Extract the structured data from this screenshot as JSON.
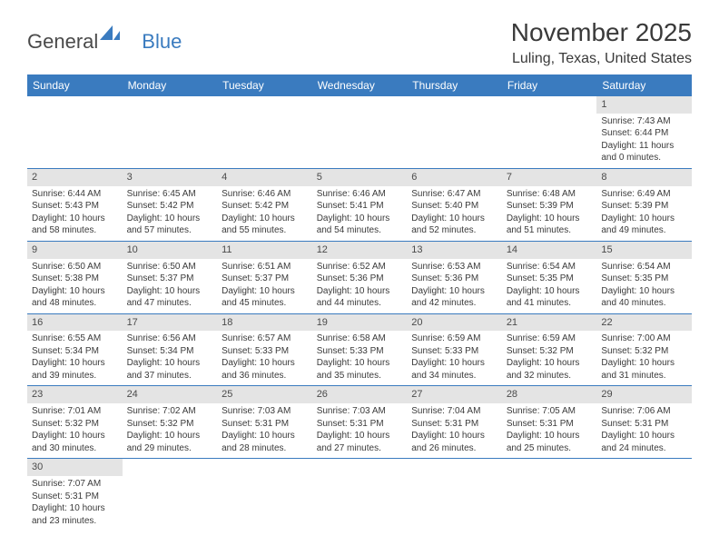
{
  "logo": {
    "text1": "General",
    "text2": "Blue"
  },
  "title": "November 2025",
  "location": "Luling, Texas, United States",
  "colors": {
    "header_bg": "#3a7bbf",
    "header_fg": "#ffffff",
    "daynum_bg": "#e4e4e4",
    "text": "#3a3a3a",
    "rule": "#3a7bbf"
  },
  "weekdays": [
    "Sunday",
    "Monday",
    "Tuesday",
    "Wednesday",
    "Thursday",
    "Friday",
    "Saturday"
  ],
  "weeks": [
    [
      null,
      null,
      null,
      null,
      null,
      null,
      {
        "n": "1",
        "sr": "Sunrise: 7:43 AM",
        "ss": "Sunset: 6:44 PM",
        "d1": "Daylight: 11 hours",
        "d2": "and 0 minutes."
      }
    ],
    [
      {
        "n": "2",
        "sr": "Sunrise: 6:44 AM",
        "ss": "Sunset: 5:43 PM",
        "d1": "Daylight: 10 hours",
        "d2": "and 58 minutes."
      },
      {
        "n": "3",
        "sr": "Sunrise: 6:45 AM",
        "ss": "Sunset: 5:42 PM",
        "d1": "Daylight: 10 hours",
        "d2": "and 57 minutes."
      },
      {
        "n": "4",
        "sr": "Sunrise: 6:46 AM",
        "ss": "Sunset: 5:42 PM",
        "d1": "Daylight: 10 hours",
        "d2": "and 55 minutes."
      },
      {
        "n": "5",
        "sr": "Sunrise: 6:46 AM",
        "ss": "Sunset: 5:41 PM",
        "d1": "Daylight: 10 hours",
        "d2": "and 54 minutes."
      },
      {
        "n": "6",
        "sr": "Sunrise: 6:47 AM",
        "ss": "Sunset: 5:40 PM",
        "d1": "Daylight: 10 hours",
        "d2": "and 52 minutes."
      },
      {
        "n": "7",
        "sr": "Sunrise: 6:48 AM",
        "ss": "Sunset: 5:39 PM",
        "d1": "Daylight: 10 hours",
        "d2": "and 51 minutes."
      },
      {
        "n": "8",
        "sr": "Sunrise: 6:49 AM",
        "ss": "Sunset: 5:39 PM",
        "d1": "Daylight: 10 hours",
        "d2": "and 49 minutes."
      }
    ],
    [
      {
        "n": "9",
        "sr": "Sunrise: 6:50 AM",
        "ss": "Sunset: 5:38 PM",
        "d1": "Daylight: 10 hours",
        "d2": "and 48 minutes."
      },
      {
        "n": "10",
        "sr": "Sunrise: 6:50 AM",
        "ss": "Sunset: 5:37 PM",
        "d1": "Daylight: 10 hours",
        "d2": "and 47 minutes."
      },
      {
        "n": "11",
        "sr": "Sunrise: 6:51 AM",
        "ss": "Sunset: 5:37 PM",
        "d1": "Daylight: 10 hours",
        "d2": "and 45 minutes."
      },
      {
        "n": "12",
        "sr": "Sunrise: 6:52 AM",
        "ss": "Sunset: 5:36 PM",
        "d1": "Daylight: 10 hours",
        "d2": "and 44 minutes."
      },
      {
        "n": "13",
        "sr": "Sunrise: 6:53 AM",
        "ss": "Sunset: 5:36 PM",
        "d1": "Daylight: 10 hours",
        "d2": "and 42 minutes."
      },
      {
        "n": "14",
        "sr": "Sunrise: 6:54 AM",
        "ss": "Sunset: 5:35 PM",
        "d1": "Daylight: 10 hours",
        "d2": "and 41 minutes."
      },
      {
        "n": "15",
        "sr": "Sunrise: 6:54 AM",
        "ss": "Sunset: 5:35 PM",
        "d1": "Daylight: 10 hours",
        "d2": "and 40 minutes."
      }
    ],
    [
      {
        "n": "16",
        "sr": "Sunrise: 6:55 AM",
        "ss": "Sunset: 5:34 PM",
        "d1": "Daylight: 10 hours",
        "d2": "and 39 minutes."
      },
      {
        "n": "17",
        "sr": "Sunrise: 6:56 AM",
        "ss": "Sunset: 5:34 PM",
        "d1": "Daylight: 10 hours",
        "d2": "and 37 minutes."
      },
      {
        "n": "18",
        "sr": "Sunrise: 6:57 AM",
        "ss": "Sunset: 5:33 PM",
        "d1": "Daylight: 10 hours",
        "d2": "and 36 minutes."
      },
      {
        "n": "19",
        "sr": "Sunrise: 6:58 AM",
        "ss": "Sunset: 5:33 PM",
        "d1": "Daylight: 10 hours",
        "d2": "and 35 minutes."
      },
      {
        "n": "20",
        "sr": "Sunrise: 6:59 AM",
        "ss": "Sunset: 5:33 PM",
        "d1": "Daylight: 10 hours",
        "d2": "and 34 minutes."
      },
      {
        "n": "21",
        "sr": "Sunrise: 6:59 AM",
        "ss": "Sunset: 5:32 PM",
        "d1": "Daylight: 10 hours",
        "d2": "and 32 minutes."
      },
      {
        "n": "22",
        "sr": "Sunrise: 7:00 AM",
        "ss": "Sunset: 5:32 PM",
        "d1": "Daylight: 10 hours",
        "d2": "and 31 minutes."
      }
    ],
    [
      {
        "n": "23",
        "sr": "Sunrise: 7:01 AM",
        "ss": "Sunset: 5:32 PM",
        "d1": "Daylight: 10 hours",
        "d2": "and 30 minutes."
      },
      {
        "n": "24",
        "sr": "Sunrise: 7:02 AM",
        "ss": "Sunset: 5:32 PM",
        "d1": "Daylight: 10 hours",
        "d2": "and 29 minutes."
      },
      {
        "n": "25",
        "sr": "Sunrise: 7:03 AM",
        "ss": "Sunset: 5:31 PM",
        "d1": "Daylight: 10 hours",
        "d2": "and 28 minutes."
      },
      {
        "n": "26",
        "sr": "Sunrise: 7:03 AM",
        "ss": "Sunset: 5:31 PM",
        "d1": "Daylight: 10 hours",
        "d2": "and 27 minutes."
      },
      {
        "n": "27",
        "sr": "Sunrise: 7:04 AM",
        "ss": "Sunset: 5:31 PM",
        "d1": "Daylight: 10 hours",
        "d2": "and 26 minutes."
      },
      {
        "n": "28",
        "sr": "Sunrise: 7:05 AM",
        "ss": "Sunset: 5:31 PM",
        "d1": "Daylight: 10 hours",
        "d2": "and 25 minutes."
      },
      {
        "n": "29",
        "sr": "Sunrise: 7:06 AM",
        "ss": "Sunset: 5:31 PM",
        "d1": "Daylight: 10 hours",
        "d2": "and 24 minutes."
      }
    ],
    [
      {
        "n": "30",
        "sr": "Sunrise: 7:07 AM",
        "ss": "Sunset: 5:31 PM",
        "d1": "Daylight: 10 hours",
        "d2": "and 23 minutes."
      },
      null,
      null,
      null,
      null,
      null,
      null
    ]
  ]
}
